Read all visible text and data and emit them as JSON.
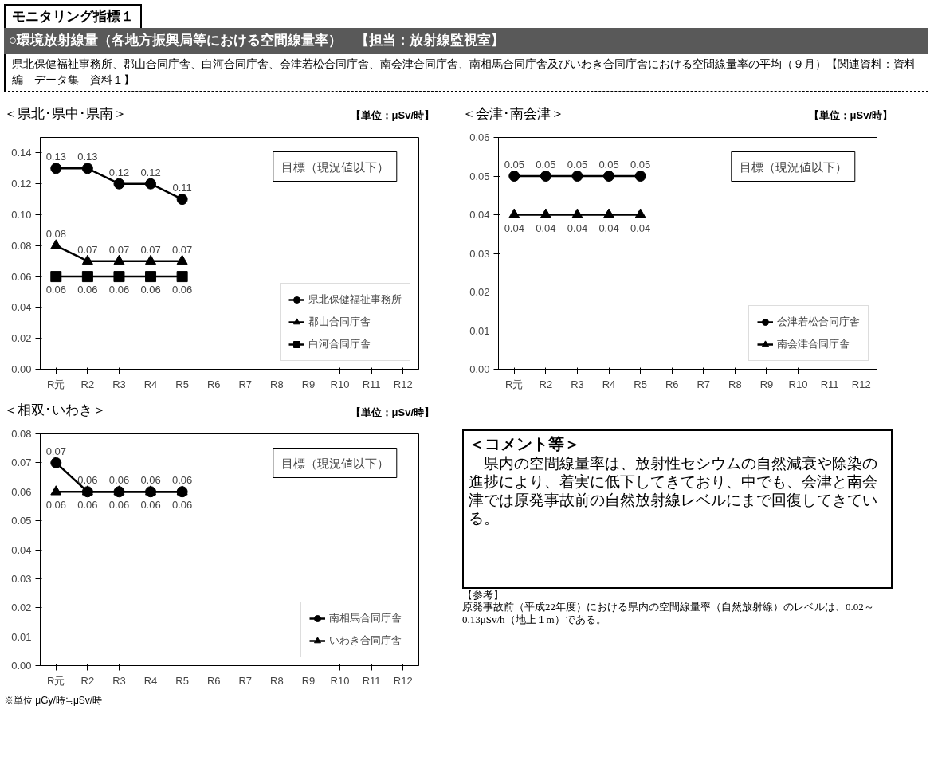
{
  "chart_data": [
    {
      "type": "other",
      "title": "モニタリング指標１",
      "subtitle": "○環境放射線量（各地方振興局等における空間線量率）　【担当：放射線監視室】",
      "annotations": [
        "県北保健福祉事務所、郡山合同庁舎、白河合同庁舎、会津若松合同庁舎、南会津合同庁舎、南相馬合同庁舎及びいわき合同庁舎における空間線量率の平均（９月）【関連資料：資料編　データ集　資料１】"
      ]
    },
    {
      "type": "line",
      "title": "＜県北･県中･県南＞",
      "categories": [
        "R元",
        "R2",
        "R3",
        "R4",
        "R5",
        "R6",
        "R7",
        "R8",
        "R9",
        "R10",
        "R11",
        "R12"
      ],
      "series": [
        {
          "name": "県北保健福祉事務所",
          "color": "#000000",
          "marker": "circle",
          "values": [
            0.13,
            0.13,
            0.12,
            0.12,
            0.11,
            null,
            null,
            null,
            null,
            null,
            null,
            null
          ]
        },
        {
          "name": "郡山合同庁舎",
          "color": "#000000",
          "marker": "triangle",
          "values": [
            0.08,
            0.07,
            0.07,
            0.07,
            0.07,
            null,
            null,
            null,
            null,
            null,
            null,
            null
          ]
        },
        {
          "name": "白河合同庁舎",
          "color": "#000000",
          "marker": "square",
          "values": [
            0.06,
            0.06,
            0.06,
            0.06,
            0.06,
            null,
            null,
            null,
            null,
            null,
            null,
            null
          ]
        }
      ],
      "ylim": [
        0,
        0.15
      ],
      "yticks": [
        {
          "value": 0,
          "label": "0.00"
        },
        {
          "value": 0.02,
          "label": "0.02"
        },
        {
          "value": 0.04,
          "label": "0.04"
        },
        {
          "value": 0.06,
          "label": "0.06"
        },
        {
          "value": 0.08,
          "label": "0.08"
        },
        {
          "value": 0.1,
          "label": "0.10"
        },
        {
          "value": 0.12,
          "label": "0.12"
        },
        {
          "value": 0.14,
          "label": "0.14"
        }
      ],
      "data_labels": true,
      "grid": false,
      "legend": "bottom right",
      "annotations": [
        "【単位：μSv/時】",
        "目標（現況値以下）"
      ]
    },
    {
      "type": "line",
      "title": "＜会津･南会津＞",
      "categories": [
        "R元",
        "R2",
        "R3",
        "R4",
        "R5",
        "R6",
        "R7",
        "R8",
        "R9",
        "R10",
        "R11",
        "R12"
      ],
      "series": [
        {
          "name": "会津若松合同庁舎",
          "color": "#000000",
          "marker": "circle",
          "values": [
            0.05,
            0.05,
            0.05,
            0.05,
            0.05,
            null,
            null,
            null,
            null,
            null,
            null,
            null
          ]
        },
        {
          "name": "南会津合同庁舎",
          "color": "#000000",
          "marker": "triangle",
          "values": [
            0.04,
            0.04,
            0.04,
            0.04,
            0.04,
            null,
            null,
            null,
            null,
            null,
            null,
            null
          ]
        }
      ],
      "ylim": [
        0,
        0.06
      ],
      "yticks": [
        {
          "value": 0,
          "label": "0.00"
        },
        {
          "value": 0.01,
          "label": "0.01"
        },
        {
          "value": 0.02,
          "label": "0.02"
        },
        {
          "value": 0.03,
          "label": "0.03"
        },
        {
          "value": 0.04,
          "label": "0.04"
        },
        {
          "value": 0.05,
          "label": "0.05"
        },
        {
          "value": 0.06,
          "label": "0.06"
        }
      ],
      "data_labels": true,
      "grid": false,
      "legend": "bottom right",
      "annotations": [
        "【単位：μSv/時】",
        "目標（現況値以下）"
      ]
    },
    {
      "type": "line",
      "title": "＜相双･いわき＞",
      "categories": [
        "R元",
        "R2",
        "R3",
        "R4",
        "R5",
        "R6",
        "R7",
        "R8",
        "R9",
        "R10",
        "R11",
        "R12"
      ],
      "series": [
        {
          "name": "南相馬合同庁舎",
          "color": "#000000",
          "marker": "circle",
          "values": [
            0.07,
            0.06,
            0.06,
            0.06,
            0.06,
            null,
            null,
            null,
            null,
            null,
            null,
            null
          ]
        },
        {
          "name": "いわき合同庁舎",
          "color": "#000000",
          "marker": "triangle",
          "values": [
            0.06,
            0.06,
            0.06,
            0.06,
            0.06,
            null,
            null,
            null,
            null,
            null,
            null,
            null
          ]
        }
      ],
      "ylim": [
        0,
        0.08
      ],
      "yticks": [
        {
          "value": 0,
          "label": "0.00"
        },
        {
          "value": 0.01,
          "label": "0.01"
        },
        {
          "value": 0.02,
          "label": "0.02"
        },
        {
          "value": 0.03,
          "label": "0.03"
        },
        {
          "value": 0.04,
          "label": "0.04"
        },
        {
          "value": 0.05,
          "label": "0.05"
        },
        {
          "value": 0.06,
          "label": "0.06"
        },
        {
          "value": 0.07,
          "label": "0.07"
        },
        {
          "value": 0.08,
          "label": "0.08"
        }
      ],
      "data_labels": true,
      "grid": false,
      "legend": "bottom right",
      "annotations": [
        "【単位：μSv/時】",
        "目標（現況値以下）",
        "※単位 μGy/時≒μSv/時"
      ]
    },
    {
      "type": "other",
      "title": "＜コメント等＞",
      "annotations": [
        "　県内の空間線量率は、放射性セシウムの自然減衰や除染の進捗により、着実に低下してきており、中でも、会津と南会津では原発事故前の自然放射線レベルにまで回復してきている。",
        "【参考】",
        "原発事故前（平成22年度）における県内の空間線量率（自然放射線）のレベルは、0.02～0.13μSv/h（地上１m）である。"
      ]
    }
  ]
}
